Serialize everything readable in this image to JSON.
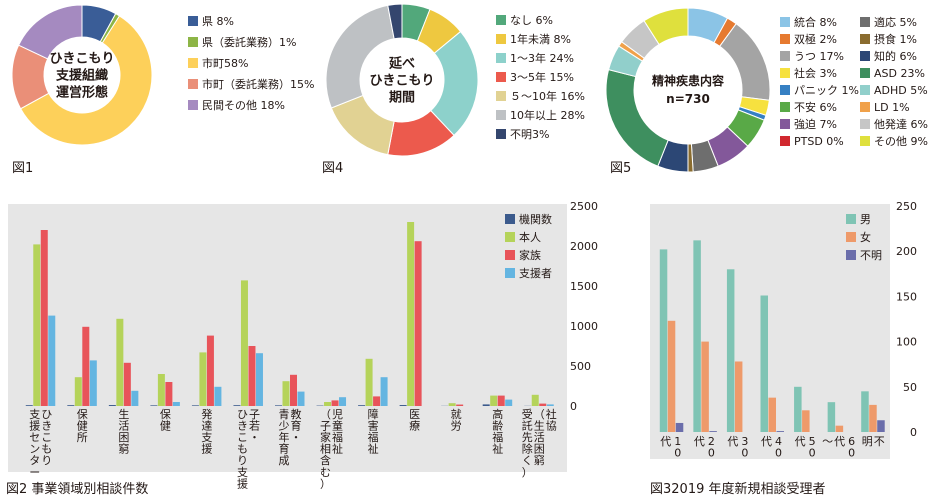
{
  "colors": {
    "panel_bg": "#e6e6e6",
    "male": "#7fc4b4",
    "female": "#ee9a6a",
    "unknown": "#6b6eab",
    "agencies": "#3b5a8c",
    "person": "#b5d35a",
    "family": "#e8545a",
    "supporter": "#64b5e1"
  },
  "chart_data": [
    {
      "type": "pie",
      "figure_label": "図1",
      "center_lines": [
        "ひきこもり",
        "支援組織",
        "運営形態"
      ],
      "labels": [
        "県 8%",
        "県（委託業務）1%",
        "市町58%",
        "市町（委託業務）15%",
        "民間その他 18%"
      ],
      "values": [
        8,
        1,
        58,
        15,
        18
      ],
      "colors": [
        "#3a5d97",
        "#8db546",
        "#fdd05a",
        "#ea8f78",
        "#a58ac0"
      ]
    },
    {
      "type": "pie",
      "figure_label": "図4",
      "center_lines": [
        "延べ",
        "ひきこもり",
        "期間"
      ],
      "labels": [
        "なし 6%",
        "1年未満 8%",
        "1〜3年 24%",
        "3〜5年 15%",
        "５〜10年 16%",
        "10年以上 28%",
        "不明3%"
      ],
      "values": [
        6,
        8,
        24,
        15,
        16,
        28,
        3
      ],
      "colors": [
        "#52a87b",
        "#eec840",
        "#8dd1cb",
        "#ec5a4d",
        "#e1d293",
        "#bec1c4",
        "#34466e"
      ]
    },
    {
      "type": "pie",
      "figure_label": "図5",
      "center_lines": [
        "精神疾患内容",
        "n=730"
      ],
      "labels": [
        "統合 8%",
        "双極 2%",
        "うつ 17%",
        "社会 3%",
        "パニック 1%",
        "不安 6%",
        "強迫 7%",
        "PTSD 0%",
        "適応 5%",
        "摂食 1%",
        "知的 6%",
        "ASD 23%",
        "ADHD 5%",
        "LD 1%",
        "他発達 6%",
        "その他 9%"
      ],
      "values": [
        8,
        2,
        17,
        3,
        1,
        6,
        7,
        0,
        5,
        1,
        6,
        23,
        5,
        1,
        6,
        9
      ],
      "colors": [
        "#8bc4e6",
        "#e67a30",
        "#a4a4a4",
        "#f6e13f",
        "#3680c3",
        "#59a947",
        "#83589a",
        "#d1282f",
        "#6e6e6e",
        "#8a6c2f",
        "#2c4775",
        "#3e8f5f",
        "#91cfcb",
        "#f0a14a",
        "#c6c6c6",
        "#dfe03d"
      ]
    },
    {
      "type": "bar",
      "figure_label": "図2",
      "title": "事業領域別相談件数",
      "categories": [
        "ひきこもり\n支援センター",
        "保健所",
        "生活困窮",
        "保健",
        "発達支援",
        "子若・\nひきこもり支援",
        "教育・\n青少年育成",
        "児童福祉\n（子家相含む）",
        "障害福祉",
        "医療",
        "就労",
        "高齢福祉",
        "社協\n（生活困窮\n受託先除く）"
      ],
      "series": [
        {
          "name": "機関数",
          "values": [
            10,
            10,
            12,
            8,
            8,
            10,
            8,
            5,
            10,
            12,
            2,
            20,
            2
          ]
        },
        {
          "name": "本人",
          "values": [
            2020,
            360,
            1090,
            400,
            670,
            1570,
            310,
            50,
            590,
            2300,
            35,
            130,
            140
          ]
        },
        {
          "name": "家族",
          "values": [
            2200,
            990,
            540,
            300,
            880,
            750,
            390,
            70,
            120,
            2060,
            18,
            130,
            30
          ]
        },
        {
          "name": "支援者",
          "values": [
            1130,
            570,
            190,
            50,
            240,
            660,
            180,
            110,
            360,
            0,
            0,
            80,
            20
          ]
        }
      ],
      "ylim": [
        0,
        2500
      ],
      "yticks": [
        0,
        500,
        1000,
        1500,
        2000,
        2500
      ],
      "legend_position": "top-right"
    },
    {
      "type": "bar",
      "figure_label": "図3",
      "title": "2019 年度新規相談受理者",
      "categories": [
        "10\n代",
        "20\n代",
        "30\n代",
        "40\n代",
        "50\n代",
        "60\n代\n〜",
        "不\n明"
      ],
      "series": [
        {
          "name": "男",
          "values": [
            202,
            212,
            180,
            151,
            50,
            33,
            45
          ]
        },
        {
          "name": "女",
          "values": [
            123,
            100,
            78,
            38,
            24,
            7,
            30
          ]
        },
        {
          "name": "不明",
          "values": [
            10,
            1,
            0,
            1,
            0,
            0,
            13
          ]
        }
      ],
      "ylim": [
        0,
        250
      ],
      "yticks": [
        0,
        50,
        100,
        150,
        200,
        250
      ],
      "legend_position": "top-left"
    }
  ]
}
